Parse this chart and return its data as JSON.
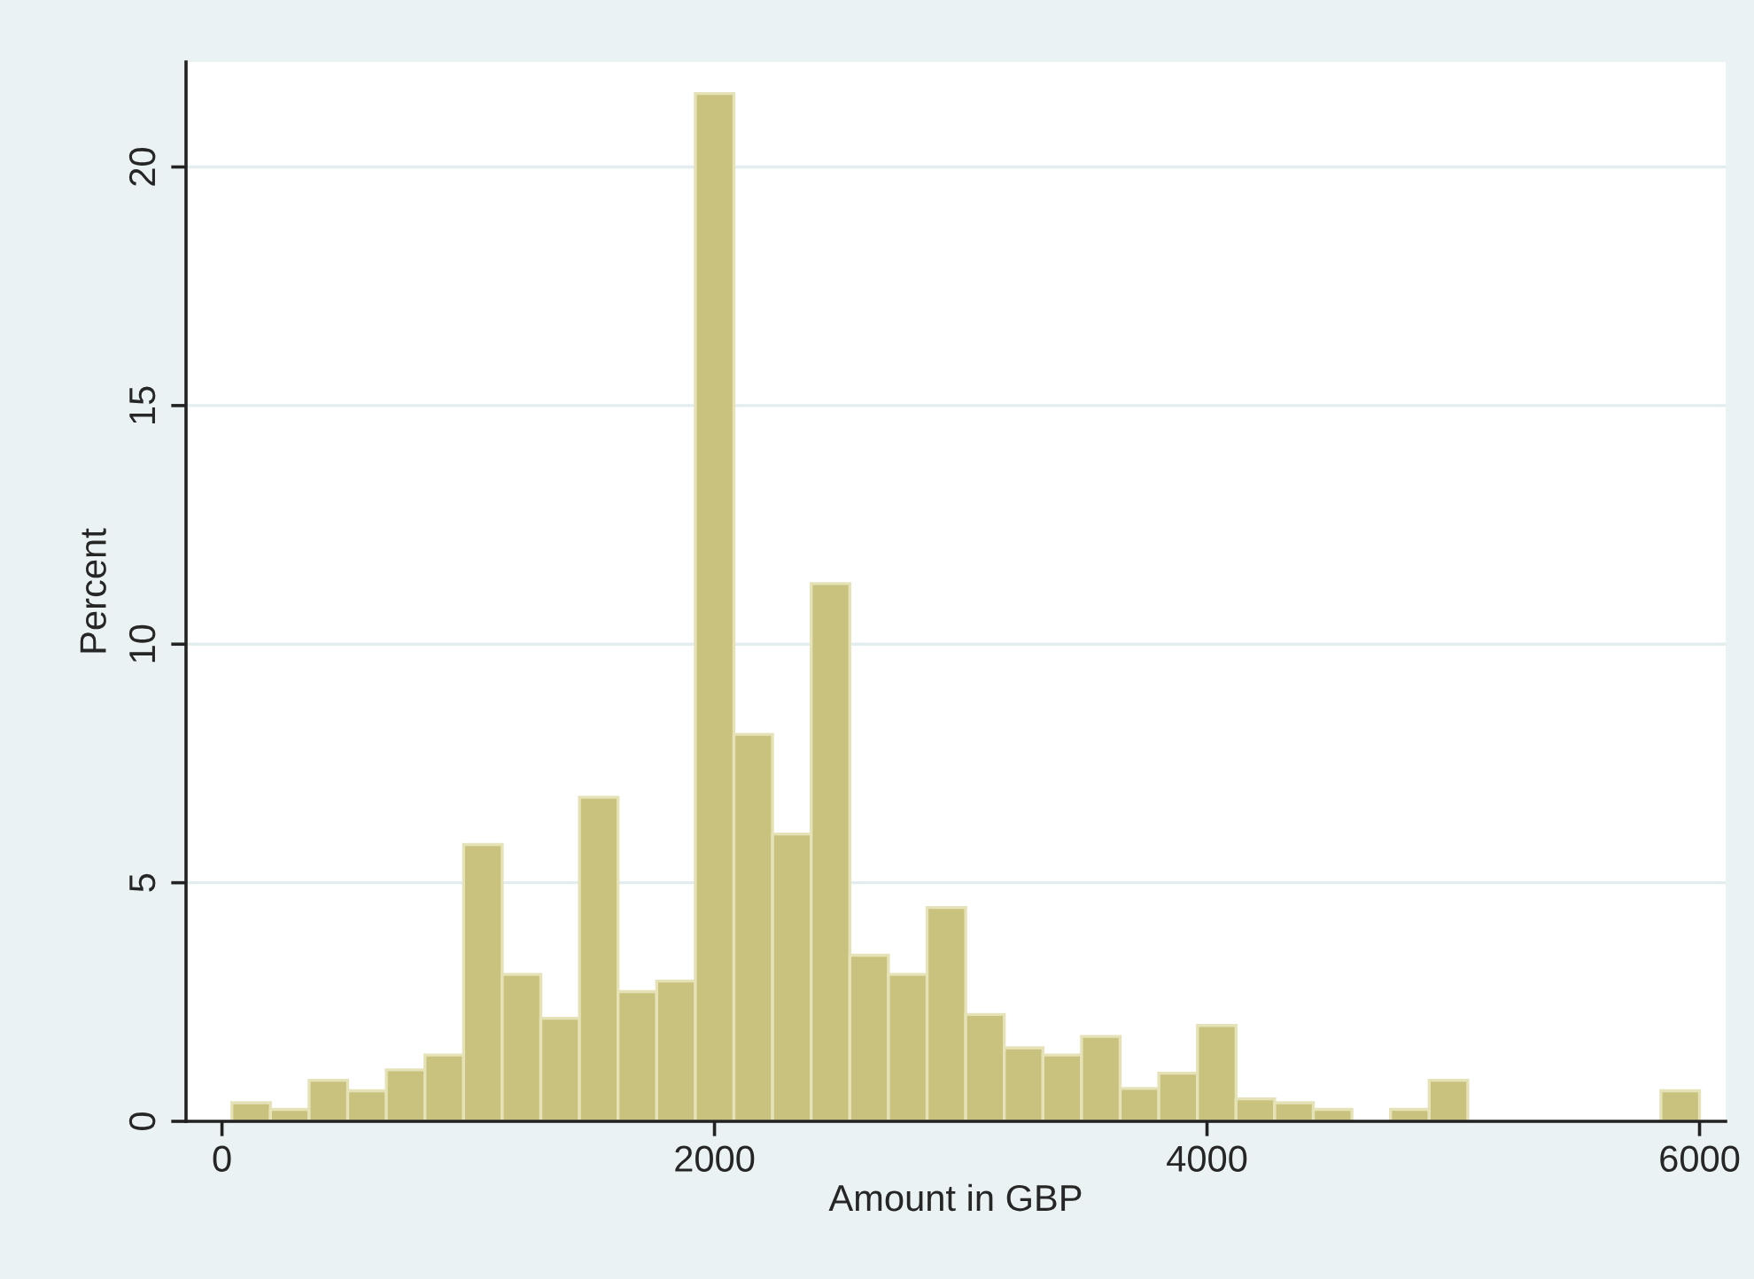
{
  "chart_data": {
    "type": "histogram",
    "xlabel": "Amount in GBP",
    "ylabel": "Percent",
    "bins": [
      40,
      196.8,
      353.7,
      510.5,
      667.4,
      824.2,
      981.1,
      1137.9,
      1294.7,
      1451.6,
      1608.4,
      1765.3,
      1922.1,
      2078.9,
      2235.8,
      2392.6,
      2549.5,
      2706.3,
      2863.2,
      3020,
      3176.8,
      3333.7,
      3490.5,
      3647.4,
      3804.2,
      3961.1,
      4117.9,
      4274.7,
      4431.6,
      4588.4,
      4745.3,
      4902.1,
      5058.9,
      5215.8,
      5372.6,
      5529.5,
      5686.3,
      5843.2,
      6000
    ],
    "values": [
      0.39,
      0.25,
      0.86,
      0.64,
      1.08,
      1.39,
      5.8,
      3.08,
      2.16,
      6.79,
      2.72,
      2.94,
      21.54,
      8.11,
      6.02,
      11.27,
      3.48,
      3.08,
      4.48,
      2.24,
      1.54,
      1.39,
      1.78,
      0.69,
      1.01,
      2.01,
      0.47,
      0.39,
      0.25,
      0,
      0.25,
      0.86,
      0,
      0,
      0,
      0,
      0,
      0.64
    ],
    "color": "#c9c27f",
    "xlim": [
      -146,
      6106
    ],
    "xticks": [
      0,
      2000,
      4000,
      6000
    ],
    "ylim": [
      0,
      22.2
    ],
    "yticks": [
      0,
      5,
      10,
      15,
      20
    ],
    "grid": "y"
  }
}
